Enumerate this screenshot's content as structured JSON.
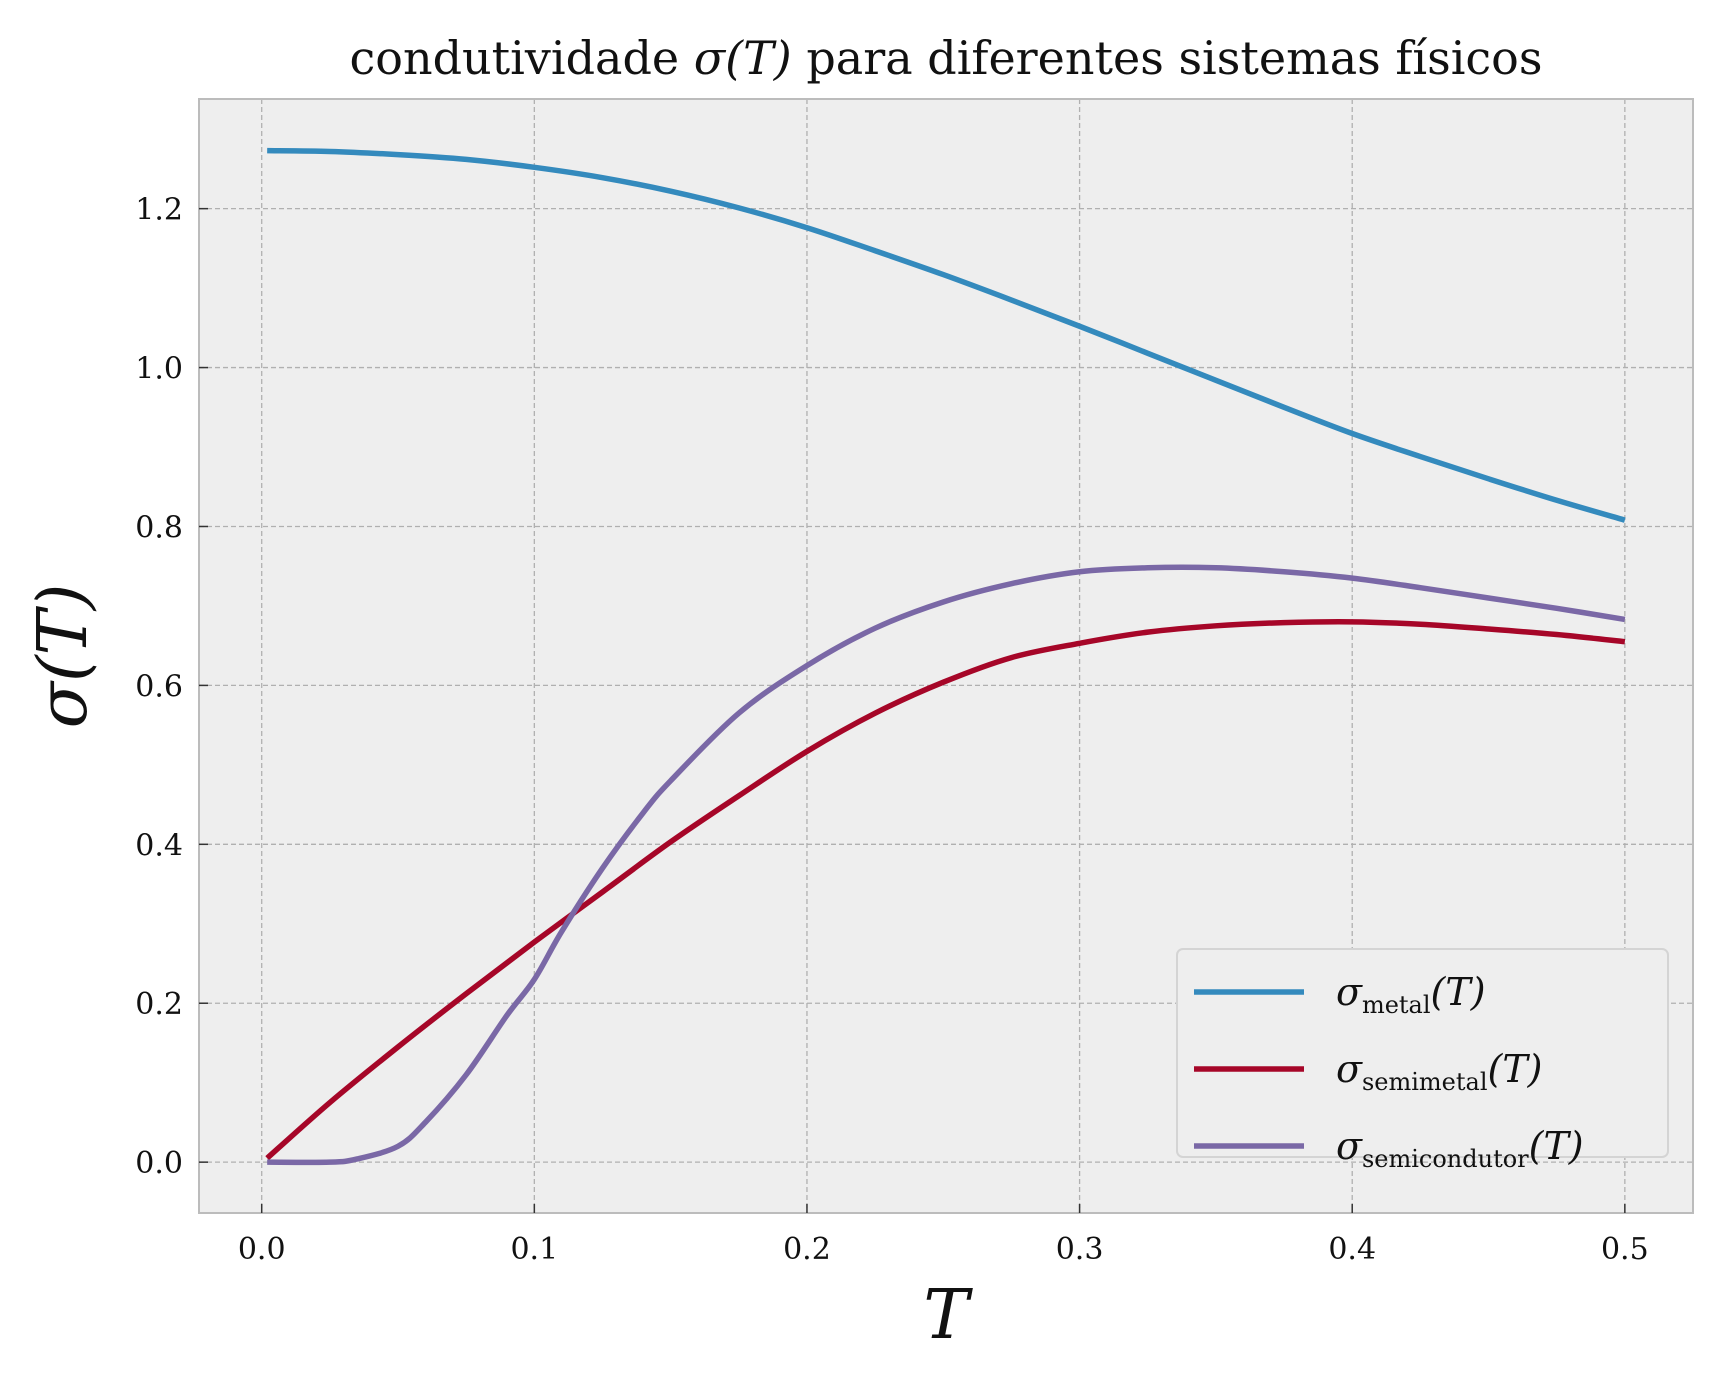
{
  "chart_data": {
    "type": "line",
    "title": {
      "prefix": "condutividade ",
      "symbol": "σ(T)",
      "suffix": " para diferentes sistemas físicos"
    },
    "xlabel": "T",
    "ylabel": "σ(T)",
    "xlim": [
      -0.023,
      0.525
    ],
    "ylim": [
      -0.064,
      1.338
    ],
    "xticks": [
      0.0,
      0.1,
      0.2,
      0.3,
      0.4,
      0.5
    ],
    "xtick_labels": [
      "0.0",
      "0.1",
      "0.2",
      "0.3",
      "0.4",
      "0.5"
    ],
    "yticks": [
      0.0,
      0.2,
      0.4,
      0.6,
      0.8,
      1.0,
      1.2
    ],
    "ytick_labels": [
      "0.0",
      "0.2",
      "0.4",
      "0.6",
      "0.8",
      "1.0",
      "1.2"
    ],
    "grid": true,
    "legend_position": "lower-right",
    "background": "#eeeeee",
    "grid_color": "#b0b0b0",
    "series": [
      {
        "legend_sigma": "σ",
        "legend_sub": "metal",
        "legend_arg": "(T)",
        "color": "#348abd",
        "x": [
          0.002,
          0.025,
          0.05,
          0.075,
          0.1,
          0.125,
          0.15,
          0.175,
          0.2,
          0.225,
          0.25,
          0.275,
          0.3,
          0.325,
          0.35,
          0.375,
          0.4,
          0.425,
          0.45,
          0.475,
          0.5
        ],
        "y": [
          1.273,
          1.272,
          1.268,
          1.262,
          1.252,
          1.239,
          1.222,
          1.201,
          1.176,
          1.147,
          1.117,
          1.085,
          1.052,
          1.018,
          0.984,
          0.95,
          0.917,
          0.888,
          0.86,
          0.833,
          0.808
        ]
      },
      {
        "legend_sigma": "σ",
        "legend_sub": "semimetal",
        "legend_arg": "(T)",
        "color": "#a60628",
        "x": [
          0.002,
          0.025,
          0.05,
          0.075,
          0.1,
          0.125,
          0.15,
          0.175,
          0.2,
          0.225,
          0.25,
          0.275,
          0.3,
          0.325,
          0.35,
          0.375,
          0.4,
          0.425,
          0.45,
          0.475,
          0.5
        ],
        "y": [
          0.005,
          0.075,
          0.145,
          0.212,
          0.277,
          0.34,
          0.403,
          0.461,
          0.517,
          0.565,
          0.604,
          0.635,
          0.653,
          0.667,
          0.675,
          0.679,
          0.68,
          0.677,
          0.671,
          0.664,
          0.655
        ]
      },
      {
        "legend_sigma": "σ",
        "legend_sub": "semicondutor",
        "legend_arg": "(T)",
        "color": "#7a68a6",
        "x": [
          0.002,
          0.025,
          0.035,
          0.05,
          0.06,
          0.075,
          0.09,
          0.1,
          0.11,
          0.125,
          0.14,
          0.15,
          0.175,
          0.2,
          0.225,
          0.25,
          0.275,
          0.3,
          0.325,
          0.35,
          0.375,
          0.4,
          0.425,
          0.45,
          0.475,
          0.5
        ],
        "y": [
          0.0,
          0.0,
          0.004,
          0.02,
          0.05,
          0.11,
          0.185,
          0.23,
          0.29,
          0.37,
          0.44,
          0.48,
          0.565,
          0.625,
          0.672,
          0.705,
          0.728,
          0.743,
          0.748,
          0.748,
          0.743,
          0.735,
          0.723,
          0.71,
          0.697,
          0.683
        ]
      }
    ]
  }
}
